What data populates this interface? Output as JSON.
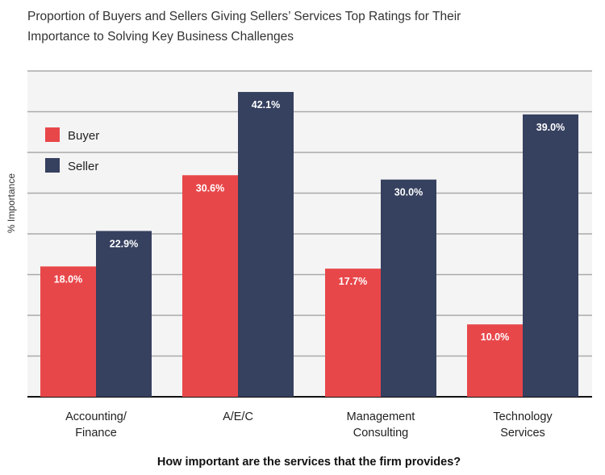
{
  "chart_data": {
    "type": "bar",
    "title_lines": [
      "Proportion of Buyers and Sellers Giving Sellers’ Services Top Ratings for Their",
      "Importance to Solving Key Business Challenges"
    ],
    "ylabel": "% Importance",
    "xlabel": "How important are the services that the firm provides?",
    "categories": [
      [
        "Accounting/",
        "Finance"
      ],
      [
        "A/E/C"
      ],
      [
        "Management",
        "Consulting"
      ],
      [
        "Technology",
        "Services"
      ]
    ],
    "series": [
      {
        "name": "Buyer",
        "color": "#e8474a",
        "values": [
          18.0,
          30.6,
          17.7,
          10.0
        ],
        "labels": [
          "18.0%",
          "30.6%",
          "17.7%",
          "10.0%"
        ]
      },
      {
        "name": "Seller",
        "color": "#36405f",
        "values": [
          22.9,
          42.1,
          30.0,
          39.0
        ],
        "labels": [
          "22.9%",
          "42.1%",
          "30.0%",
          "39.0%"
        ]
      }
    ],
    "ylim": [
      0,
      45
    ],
    "grid": true,
    "legend_position": "top-left"
  }
}
